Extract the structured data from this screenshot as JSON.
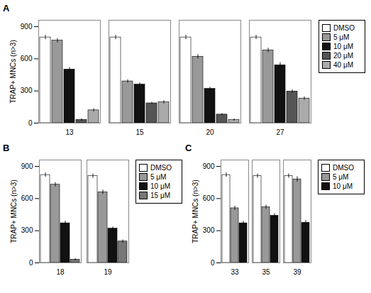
{
  "chart_data": [
    {
      "type": "bar",
      "title": "A",
      "ylabel": "TRAP+ MNCs (n>3)",
      "categories": [
        "13",
        "15",
        "20",
        "27"
      ],
      "series": [
        {
          "name": "DMSO",
          "color": "#ffffff",
          "values": [
            800,
            800,
            800,
            800
          ],
          "errors": [
            20,
            20,
            20,
            20
          ]
        },
        {
          "name": "5 μM",
          "color": "#999999",
          "values": [
            770,
            390,
            620,
            680
          ],
          "errors": [
            20,
            15,
            20,
            20
          ]
        },
        {
          "name": "10 μM",
          "color": "#111111",
          "values": [
            500,
            360,
            320,
            540
          ],
          "errors": [
            20,
            15,
            15,
            25
          ]
        },
        {
          "name": "20 μM",
          "color": "#555555",
          "values": [
            30,
            185,
            80,
            295
          ],
          "errors": [
            10,
            10,
            10,
            15
          ]
        },
        {
          "name": "40 μM",
          "color": "#aaaaaa",
          "values": [
            120,
            195,
            30,
            230
          ],
          "errors": [
            15,
            15,
            10,
            15
          ]
        }
      ],
      "ylim": [
        0,
        960
      ],
      "yticks": [
        0,
        300,
        600,
        900
      ],
      "legend": "right"
    },
    {
      "type": "bar",
      "title": "B",
      "ylabel": "TRAP+ MNCs (n>3)",
      "categories": [
        "18",
        "19"
      ],
      "series": [
        {
          "name": "DMSO",
          "color": "#ffffff",
          "values": [
            820,
            810
          ],
          "errors": [
            20,
            20
          ]
        },
        {
          "name": "5 μM",
          "color": "#999999",
          "values": [
            730,
            660
          ],
          "errors": [
            20,
            20
          ]
        },
        {
          "name": "10 μM",
          "color": "#111111",
          "values": [
            370,
            320
          ],
          "errors": [
            20,
            15
          ]
        },
        {
          "name": "15 μM",
          "color": "#777777",
          "values": [
            30,
            200
          ],
          "errors": [
            10,
            15
          ]
        }
      ],
      "ylim": [
        0,
        960
      ],
      "yticks": [
        0,
        300,
        600,
        900
      ],
      "legend": "right"
    },
    {
      "type": "bar",
      "title": "C",
      "ylabel": "TRAP+ MNCs (n>3)",
      "categories": [
        "33",
        "35",
        "39"
      ],
      "series": [
        {
          "name": "DMSO",
          "color": "#ffffff",
          "values": [
            820,
            810,
            810
          ],
          "errors": [
            20,
            20,
            20
          ]
        },
        {
          "name": "5 μM",
          "color": "#999999",
          "values": [
            510,
            520,
            780
          ],
          "errors": [
            20,
            20,
            25
          ]
        },
        {
          "name": "10 μM",
          "color": "#111111",
          "values": [
            370,
            440,
            375
          ],
          "errors": [
            20,
            20,
            20
          ]
        }
      ],
      "ylim": [
        0,
        960
      ],
      "yticks": [
        0,
        300,
        600,
        900
      ],
      "legend": "right"
    }
  ]
}
